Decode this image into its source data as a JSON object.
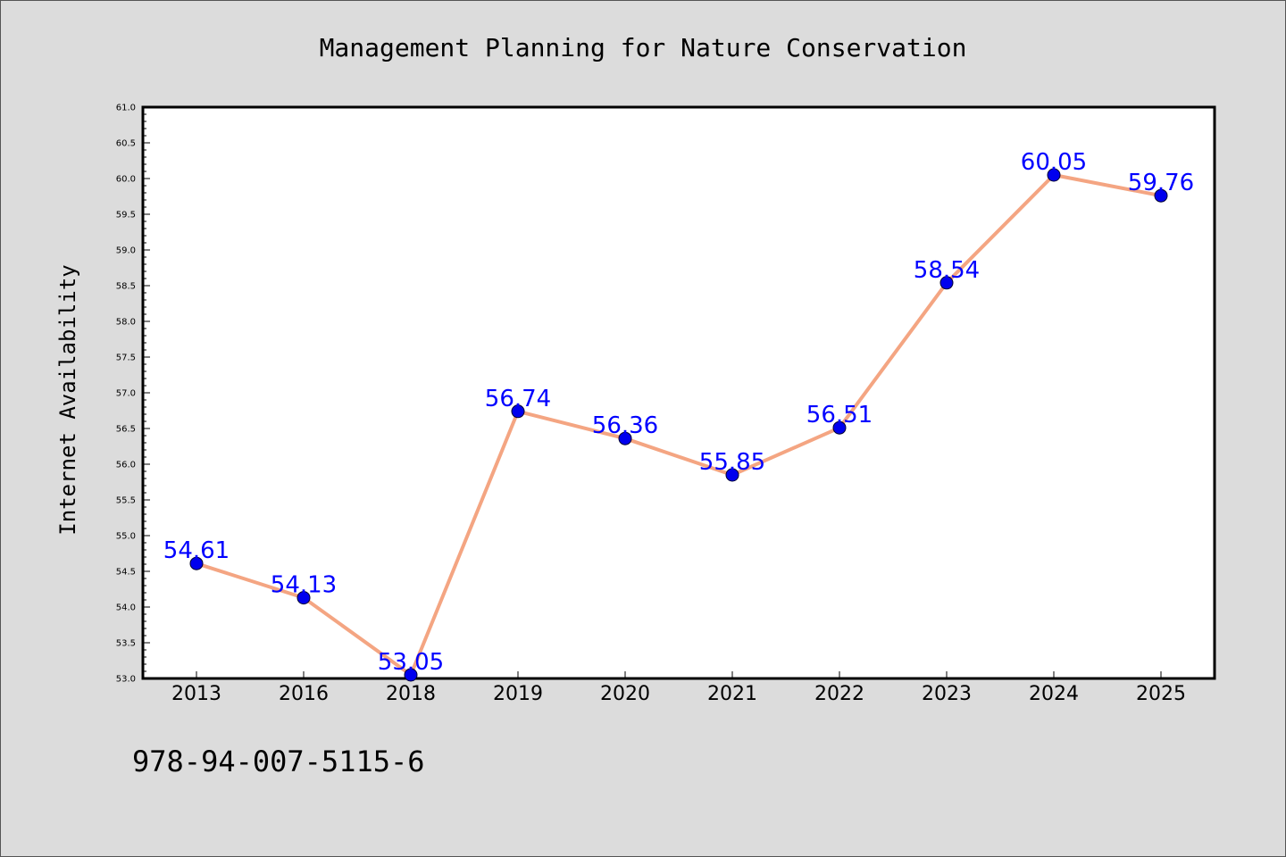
{
  "chart_data": {
    "type": "line",
    "title": "Management Planning for Nature Conservation",
    "xlabel": "",
    "ylabel": "Internet Availability",
    "categories": [
      "2013",
      "2016",
      "2018",
      "2019",
      "2020",
      "2021",
      "2022",
      "2023",
      "2024",
      "2025"
    ],
    "series": [
      {
        "values": [
          54.61,
          54.13,
          53.05,
          56.74,
          56.36,
          55.85,
          56.51,
          58.54,
          60.05,
          59.76
        ],
        "labels": [
          "54.61",
          "54.13",
          "53.05",
          "56.74",
          "56.36",
          "55.85",
          "56.51",
          "58.54",
          "60.05",
          "59.76"
        ],
        "line_color": "#f4a582",
        "marker_color": "#0000ee"
      }
    ],
    "ylim": [
      53.0,
      61.0
    ],
    "yticks": [
      "53.0",
      "53.5",
      "54.0",
      "54.5",
      "55.0",
      "55.5",
      "56.0",
      "56.5",
      "57.0",
      "57.5",
      "58.0",
      "58.5",
      "59.0",
      "59.5",
      "60.0",
      "60.5",
      "61.0"
    ],
    "grid": false,
    "legend": "none",
    "label_color": "#0000ff"
  },
  "footer": {
    "text": "978-94-007-5115-6"
  }
}
